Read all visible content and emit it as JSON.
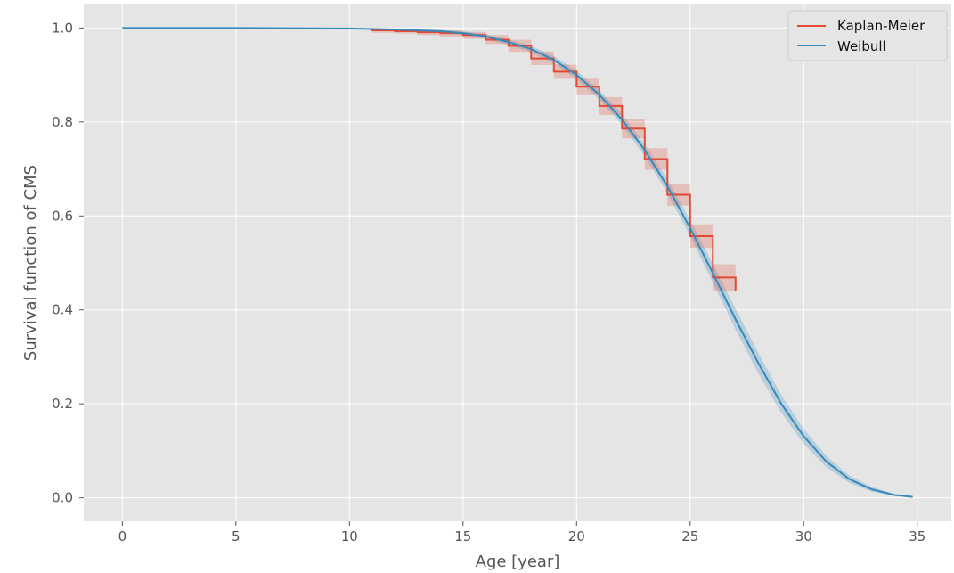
{
  "chart_data": {
    "type": "line",
    "title": "",
    "xlabel": "Age [year]",
    "ylabel": "Survival function of CMS",
    "xlim": [
      -1.7,
      36.5
    ],
    "ylim": [
      -0.05,
      1.05
    ],
    "x_ticks": [
      0,
      5,
      10,
      15,
      20,
      25,
      30,
      35
    ],
    "y_ticks": [
      0.0,
      0.2,
      0.4,
      0.6,
      0.8,
      1.0
    ],
    "x_tick_labels": [
      "0",
      "5",
      "10",
      "15",
      "20",
      "25",
      "30",
      "35"
    ],
    "y_tick_labels": [
      "0.0",
      "0.2",
      "0.4",
      "0.6",
      "0.8",
      "1.0"
    ],
    "grid": true,
    "legend_position": "top-right",
    "colors": {
      "kaplan_meier": "#E24A33",
      "weibull": "#348ABD",
      "background": "#E5E5E5",
      "grid": "#FFFFFF"
    },
    "series": [
      {
        "name": "Kaplan-Meier",
        "kind": "step",
        "x": [
          11,
          12,
          13,
          14,
          15,
          16,
          17,
          18,
          19,
          20,
          21,
          22,
          23,
          24,
          25,
          26,
          27
        ],
        "y": [
          0.995,
          0.993,
          0.991,
          0.989,
          0.985,
          0.975,
          0.962,
          0.935,
          0.907,
          0.875,
          0.834,
          0.786,
          0.721,
          0.645,
          0.557,
          0.469,
          0.44
        ],
        "ci_lower": [
          0.99,
          0.988,
          0.985,
          0.982,
          0.977,
          0.966,
          0.949,
          0.921,
          0.892,
          0.857,
          0.815,
          0.765,
          0.698,
          0.622,
          0.532,
          0.44,
          0.44
        ],
        "ci_upper": [
          0.998,
          0.997,
          0.996,
          0.995,
          0.992,
          0.985,
          0.975,
          0.95,
          0.922,
          0.892,
          0.853,
          0.807,
          0.744,
          0.668,
          0.582,
          0.497,
          0.44
        ]
      },
      {
        "name": "Weibull",
        "kind": "line",
        "x": [
          0,
          5,
          10,
          12,
          14,
          15,
          16,
          17,
          18,
          19,
          20,
          21,
          22,
          23,
          24,
          25,
          26,
          27,
          28,
          29,
          30,
          31,
          32,
          33,
          34,
          34.8
        ],
        "y": [
          1.0,
          1.0,
          0.999,
          0.997,
          0.993,
          0.989,
          0.982,
          0.97,
          0.955,
          0.932,
          0.9,
          0.858,
          0.805,
          0.74,
          0.663,
          0.574,
          0.478,
          0.38,
          0.287,
          0.201,
          0.131,
          0.077,
          0.04,
          0.018,
          0.006,
          0.002
        ],
        "ci_lower": [
          1.0,
          1.0,
          0.998,
          0.995,
          0.99,
          0.985,
          0.977,
          0.964,
          0.948,
          0.924,
          0.891,
          0.848,
          0.794,
          0.727,
          0.648,
          0.557,
          0.458,
          0.358,
          0.265,
          0.182,
          0.115,
          0.065,
          0.032,
          0.013,
          0.004,
          0.001
        ],
        "ci_upper": [
          1.0,
          1.0,
          1.0,
          0.999,
          0.996,
          0.993,
          0.987,
          0.976,
          0.962,
          0.94,
          0.909,
          0.868,
          0.816,
          0.753,
          0.678,
          0.591,
          0.498,
          0.402,
          0.309,
          0.22,
          0.147,
          0.089,
          0.048,
          0.023,
          0.008,
          0.003
        ]
      }
    ]
  }
}
